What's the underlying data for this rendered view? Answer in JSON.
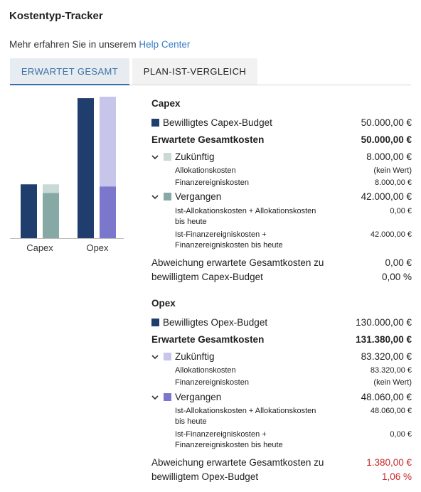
{
  "header": {
    "title": "Kostentyp-Tracker",
    "help_prefix": "Mehr erfahren Sie in unserem",
    "help_link": "Help Center"
  },
  "tabs": [
    {
      "label": "ERWARTET GESAMT",
      "active": true
    },
    {
      "label": "PLAN-IST-VERGLEICH",
      "active": false
    }
  ],
  "colors": {
    "budget": "#1f3e6e",
    "capex_future": "#c9d9d6",
    "capex_past": "#87a9a5",
    "opex_future": "#c7c5ea",
    "opex_past": "#7b77cc",
    "link": "#3a7ec4",
    "negative": "#c62828"
  },
  "chart_data": {
    "type": "bar",
    "stacked": true,
    "categories": [
      "Capex",
      "Opex"
    ],
    "ylim": [
      0,
      131380
    ],
    "series": [
      {
        "name": "Bewilligtes Budget",
        "values": [
          50000,
          130000
        ],
        "stack": "budget",
        "colors": [
          "#1f3e6e",
          "#1f3e6e"
        ]
      },
      {
        "name": "Vergangen",
        "values": [
          42000,
          48060
        ],
        "stack": "expected",
        "colors": [
          "#87a9a5",
          "#7b77cc"
        ]
      },
      {
        "name": "Zukünftig",
        "values": [
          8000,
          83320
        ],
        "stack": "expected",
        "colors": [
          "#c9d9d6",
          "#c7c5ea"
        ]
      }
    ],
    "grid": false,
    "legend": "none"
  },
  "capex": {
    "title": "Capex",
    "budget_label": "Bewilligtes Capex-Budget",
    "budget_value": "50.000,00 €",
    "expected_label": "Erwartete Gesamtkosten",
    "expected_value": "50.000,00 €",
    "future_label": "Zukünftig",
    "future_value": "8.000,00 €",
    "future_alloc_label": "Allokationskosten",
    "future_alloc_value": "(kein Wert)",
    "future_fin_label": "Finanzereigniskosten",
    "future_fin_value": "8.000,00 €",
    "past_label": "Vergangen",
    "past_value": "42.000,00 €",
    "past_alloc_label_1": "Ist-Allokationskosten + Allokationskosten",
    "past_alloc_label_2": "bis heute",
    "past_alloc_value": "0,00 €",
    "past_fin_label_1": "Ist-Finanzereigniskosten +",
    "past_fin_label_2": "Finanzereigniskosten bis heute",
    "past_fin_value": "42.000,00 €",
    "deviation_label_1": "Abweichung erwartete Gesamtkosten zu",
    "deviation_label_2": "bewilligtem Capex-Budget",
    "deviation_value": "0,00 €",
    "deviation_pct": "0,00 %"
  },
  "opex": {
    "title": "Opex",
    "budget_label": "Bewilligtes Opex-Budget",
    "budget_value": "130.000,00 €",
    "expected_label": "Erwartete Gesamtkosten",
    "expected_value": "131.380,00 €",
    "future_label": "Zukünftig",
    "future_value": "83.320,00 €",
    "future_alloc_label": "Allokationskosten",
    "future_alloc_value": "83.320,00 €",
    "future_fin_label": "Finanzereigniskosten",
    "future_fin_value": "(kein Wert)",
    "past_label": "Vergangen",
    "past_value": "48.060,00 €",
    "past_alloc_label_1": "Ist-Allokationskosten + Allokationskosten",
    "past_alloc_label_2": "bis heute",
    "past_alloc_value": "48.060,00 €",
    "past_fin_label_1": "Ist-Finanzereigniskosten +",
    "past_fin_label_2": "Finanzereigniskosten bis heute",
    "past_fin_value": "0,00 €",
    "deviation_label_1": "Abweichung erwartete Gesamtkosten zu",
    "deviation_label_2": "bewilligtem Opex-Budget",
    "deviation_value": "1.380,00 €",
    "deviation_pct": "1,06 %"
  }
}
